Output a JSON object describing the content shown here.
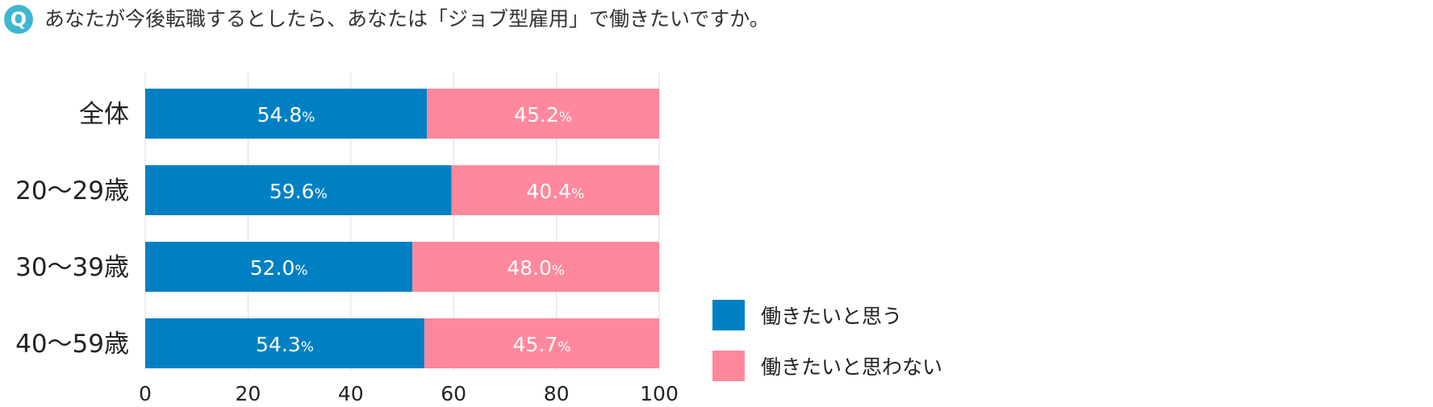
{
  "question": {
    "badge": "Q",
    "text": "あなたが今後転職するとしたら、あなたは「ジョブ型雇用」で働きたいですか。"
  },
  "colors": {
    "yes": "#0080c3",
    "no": "#ff889c",
    "grid": "#dddddd",
    "badge": "#3fb6cf"
  },
  "chart_data": {
    "type": "bar",
    "orientation": "horizontal",
    "stacked": true,
    "categories": [
      "全体",
      "20〜29歳",
      "30〜39歳",
      "40〜59歳"
    ],
    "series": [
      {
        "name": "働きたいと思う",
        "values": [
          54.8,
          59.6,
          52.0,
          54.3
        ]
      },
      {
        "name": "働きたいと思わない",
        "values": [
          45.2,
          40.4,
          48.0,
          45.7
        ]
      }
    ],
    "xlim": [
      0,
      100
    ],
    "xticks": [
      0,
      20,
      40,
      60,
      80,
      100
    ],
    "value_suffix": "%",
    "grid": true,
    "legend_position": "bottom-right"
  }
}
